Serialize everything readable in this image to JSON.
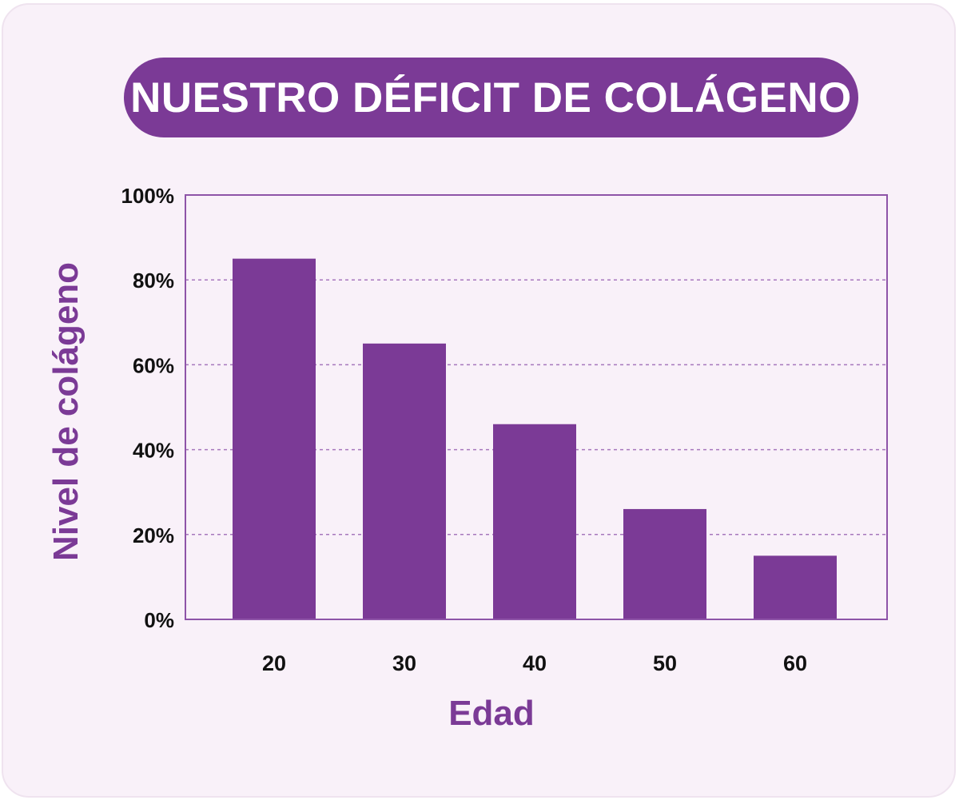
{
  "colors": {
    "bar": "#7b3a96",
    "frame": "#8e54a8",
    "grid": "#a677bd",
    "background": "#f9f1f9",
    "title_bg": "#7b3a96",
    "title_text": "#ffffff"
  },
  "chart_data": {
    "type": "bar",
    "title": "NUESTRO DÉFICIT DE COLÁGENO",
    "xlabel": "Edad",
    "ylabel": "Nivel de colágeno",
    "categories": [
      "20",
      "30",
      "40",
      "50",
      "60"
    ],
    "values": [
      85,
      65,
      46,
      26,
      15
    ],
    "ylim": [
      0,
      100
    ],
    "yticks": [
      0,
      20,
      40,
      60,
      80,
      100
    ],
    "ytick_labels": [
      "0%",
      "20%",
      "40%",
      "60%",
      "80%",
      "100%"
    ],
    "grid": true,
    "legend": "none"
  }
}
